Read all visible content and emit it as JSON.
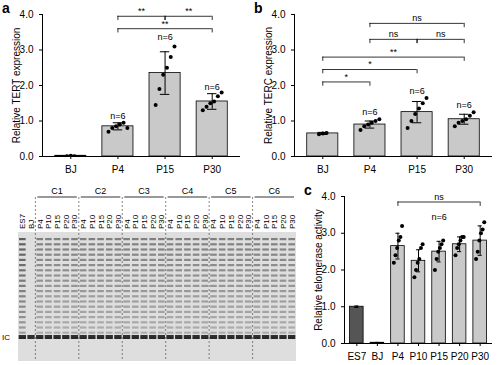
{
  "chart_data": [
    {
      "type": "bar",
      "title": "a",
      "ylabel": "Relative TERT expression",
      "categories": [
        "BJ",
        "P4",
        "P15",
        "P30"
      ],
      "values": [
        0.02,
        0.85,
        2.35,
        1.55
      ],
      "errors": [
        0.01,
        0.1,
        0.6,
        0.22
      ],
      "points": [
        [
          0.01,
          0.02,
          0.01
        ],
        [
          0.7,
          0.8,
          0.85,
          0.9,
          0.95,
          0.8
        ],
        [
          1.45,
          1.9,
          2.3,
          2.5,
          2.8,
          3.1
        ],
        [
          1.3,
          1.4,
          1.5,
          1.55,
          1.7,
          1.8
        ]
      ],
      "color": "#c9c9c9",
      "marker": "circle",
      "ylim": [
        0,
        4
      ],
      "yticks": [
        0,
        1,
        2,
        3,
        4
      ],
      "grid": false,
      "annotations": [
        {
          "category": "P4",
          "y": 1.15,
          "text": "n=6"
        },
        {
          "category": "P15",
          "y": 3.35,
          "text": "n=6"
        },
        {
          "category": "P30",
          "y": 1.95,
          "text": "n=6"
        }
      ],
      "comparisons": [
        {
          "from": "P4",
          "to": "P15",
          "y": 3.95,
          "label": "**"
        },
        {
          "from": "P15",
          "to": "P30",
          "y": 3.95,
          "label": "**"
        },
        {
          "from": "P4",
          "to": "P30",
          "y": 3.6,
          "label": "**"
        }
      ]
    },
    {
      "type": "bar",
      "title": "b",
      "ylabel": "Relative TERC expression",
      "categories": [
        "BJ",
        "P4",
        "P15",
        "P30"
      ],
      "values": [
        0.65,
        0.9,
        1.25,
        1.05
      ],
      "errors": [
        0.03,
        0.1,
        0.3,
        0.14
      ],
      "points": [
        [
          0.63,
          0.65,
          0.66
        ],
        [
          0.75,
          0.85,
          0.9,
          0.95,
          1.0,
          1.05
        ],
        [
          0.8,
          1.0,
          1.2,
          1.35,
          1.5,
          1.65
        ],
        [
          0.85,
          0.95,
          1.0,
          1.05,
          1.15,
          1.25
        ]
      ],
      "color": "#c9c9c9",
      "marker": "circle",
      "ylim": [
        0,
        4
      ],
      "yticks": [
        0,
        1,
        2,
        3,
        4
      ],
      "grid": false,
      "annotations": [
        {
          "category": "P4",
          "y": 1.25,
          "text": "n=6"
        },
        {
          "category": "P15",
          "y": 1.85,
          "text": "n=6"
        },
        {
          "category": "P30",
          "y": 1.45,
          "text": "n=6"
        }
      ],
      "comparisons": [
        {
          "from": "BJ",
          "to": "P4",
          "y": 2.1,
          "label": "*"
        },
        {
          "from": "BJ",
          "to": "P15",
          "y": 2.45,
          "label": "*"
        },
        {
          "from": "BJ",
          "to": "P30",
          "y": 2.8,
          "label": "**"
        },
        {
          "from": "P4",
          "to": "P15",
          "y": 3.3,
          "label": "ns"
        },
        {
          "from": "P15",
          "to": "P30",
          "y": 3.3,
          "label": "ns"
        },
        {
          "from": "P4",
          "to": "P30",
          "y": 3.75,
          "label": "ns"
        }
      ]
    },
    {
      "type": "bar",
      "title": "c",
      "ylabel": "Relative telomerase activity",
      "categories": [
        "ES7",
        "BJ",
        "P4",
        "P10",
        "P15",
        "P20",
        "P30"
      ],
      "values": [
        1.0,
        0.02,
        2.65,
        2.25,
        2.5,
        2.7,
        2.8
      ],
      "errors": [
        0.02,
        0.01,
        0.35,
        0.3,
        0.28,
        0.2,
        0.4
      ],
      "points": [
        [],
        [],
        [
          2.2,
          2.4,
          2.6,
          2.8,
          2.9,
          3.2
        ],
        [
          1.8,
          2.0,
          2.2,
          2.3,
          2.6,
          2.7
        ],
        [
          2.0,
          2.3,
          2.5,
          2.6,
          2.7,
          2.8
        ],
        [
          2.4,
          2.6,
          2.7,
          2.8,
          2.9,
          2.9
        ],
        [
          2.3,
          2.5,
          2.8,
          3.0,
          3.1,
          3.3
        ]
      ],
      "colors": [
        "#555555",
        "#555555",
        "#c9c9c9",
        "#c9c9c9",
        "#c9c9c9",
        "#c9c9c9",
        "#c9c9c9"
      ],
      "marker": "circle",
      "ylim": [
        0,
        4
      ],
      "yticks": [
        0,
        1,
        2,
        3,
        4
      ],
      "grid": false,
      "annotations": [
        {
          "category": "P15",
          "y": 3.45,
          "text": "n=6"
        }
      ],
      "comparisons": [
        {
          "from": "P4",
          "to": "P30",
          "y": 3.85,
          "label": "ns"
        }
      ]
    }
  ],
  "gel": {
    "single_lanes": [
      "ES7",
      "BJ"
    ],
    "groups": [
      {
        "label": "C1",
        "lanes": [
          "P4",
          "P10",
          "P15",
          "P20",
          "P30"
        ]
      },
      {
        "label": "C2",
        "lanes": [
          "P4",
          "P10",
          "P15",
          "P20",
          "P30"
        ]
      },
      {
        "label": "C3",
        "lanes": [
          "P4",
          "P10",
          "P15",
          "P20",
          "P30"
        ]
      },
      {
        "label": "C4",
        "lanes": [
          "P4",
          "P10",
          "P15",
          "P20",
          "P30"
        ]
      },
      {
        "label": "C5",
        "lanes": [
          "P4",
          "P10",
          "P15",
          "P20",
          "P30"
        ]
      },
      {
        "label": "C6",
        "lanes": [
          "P4",
          "P10",
          "P15",
          "P20",
          "P30"
        ]
      }
    ],
    "band_label": "IC"
  }
}
